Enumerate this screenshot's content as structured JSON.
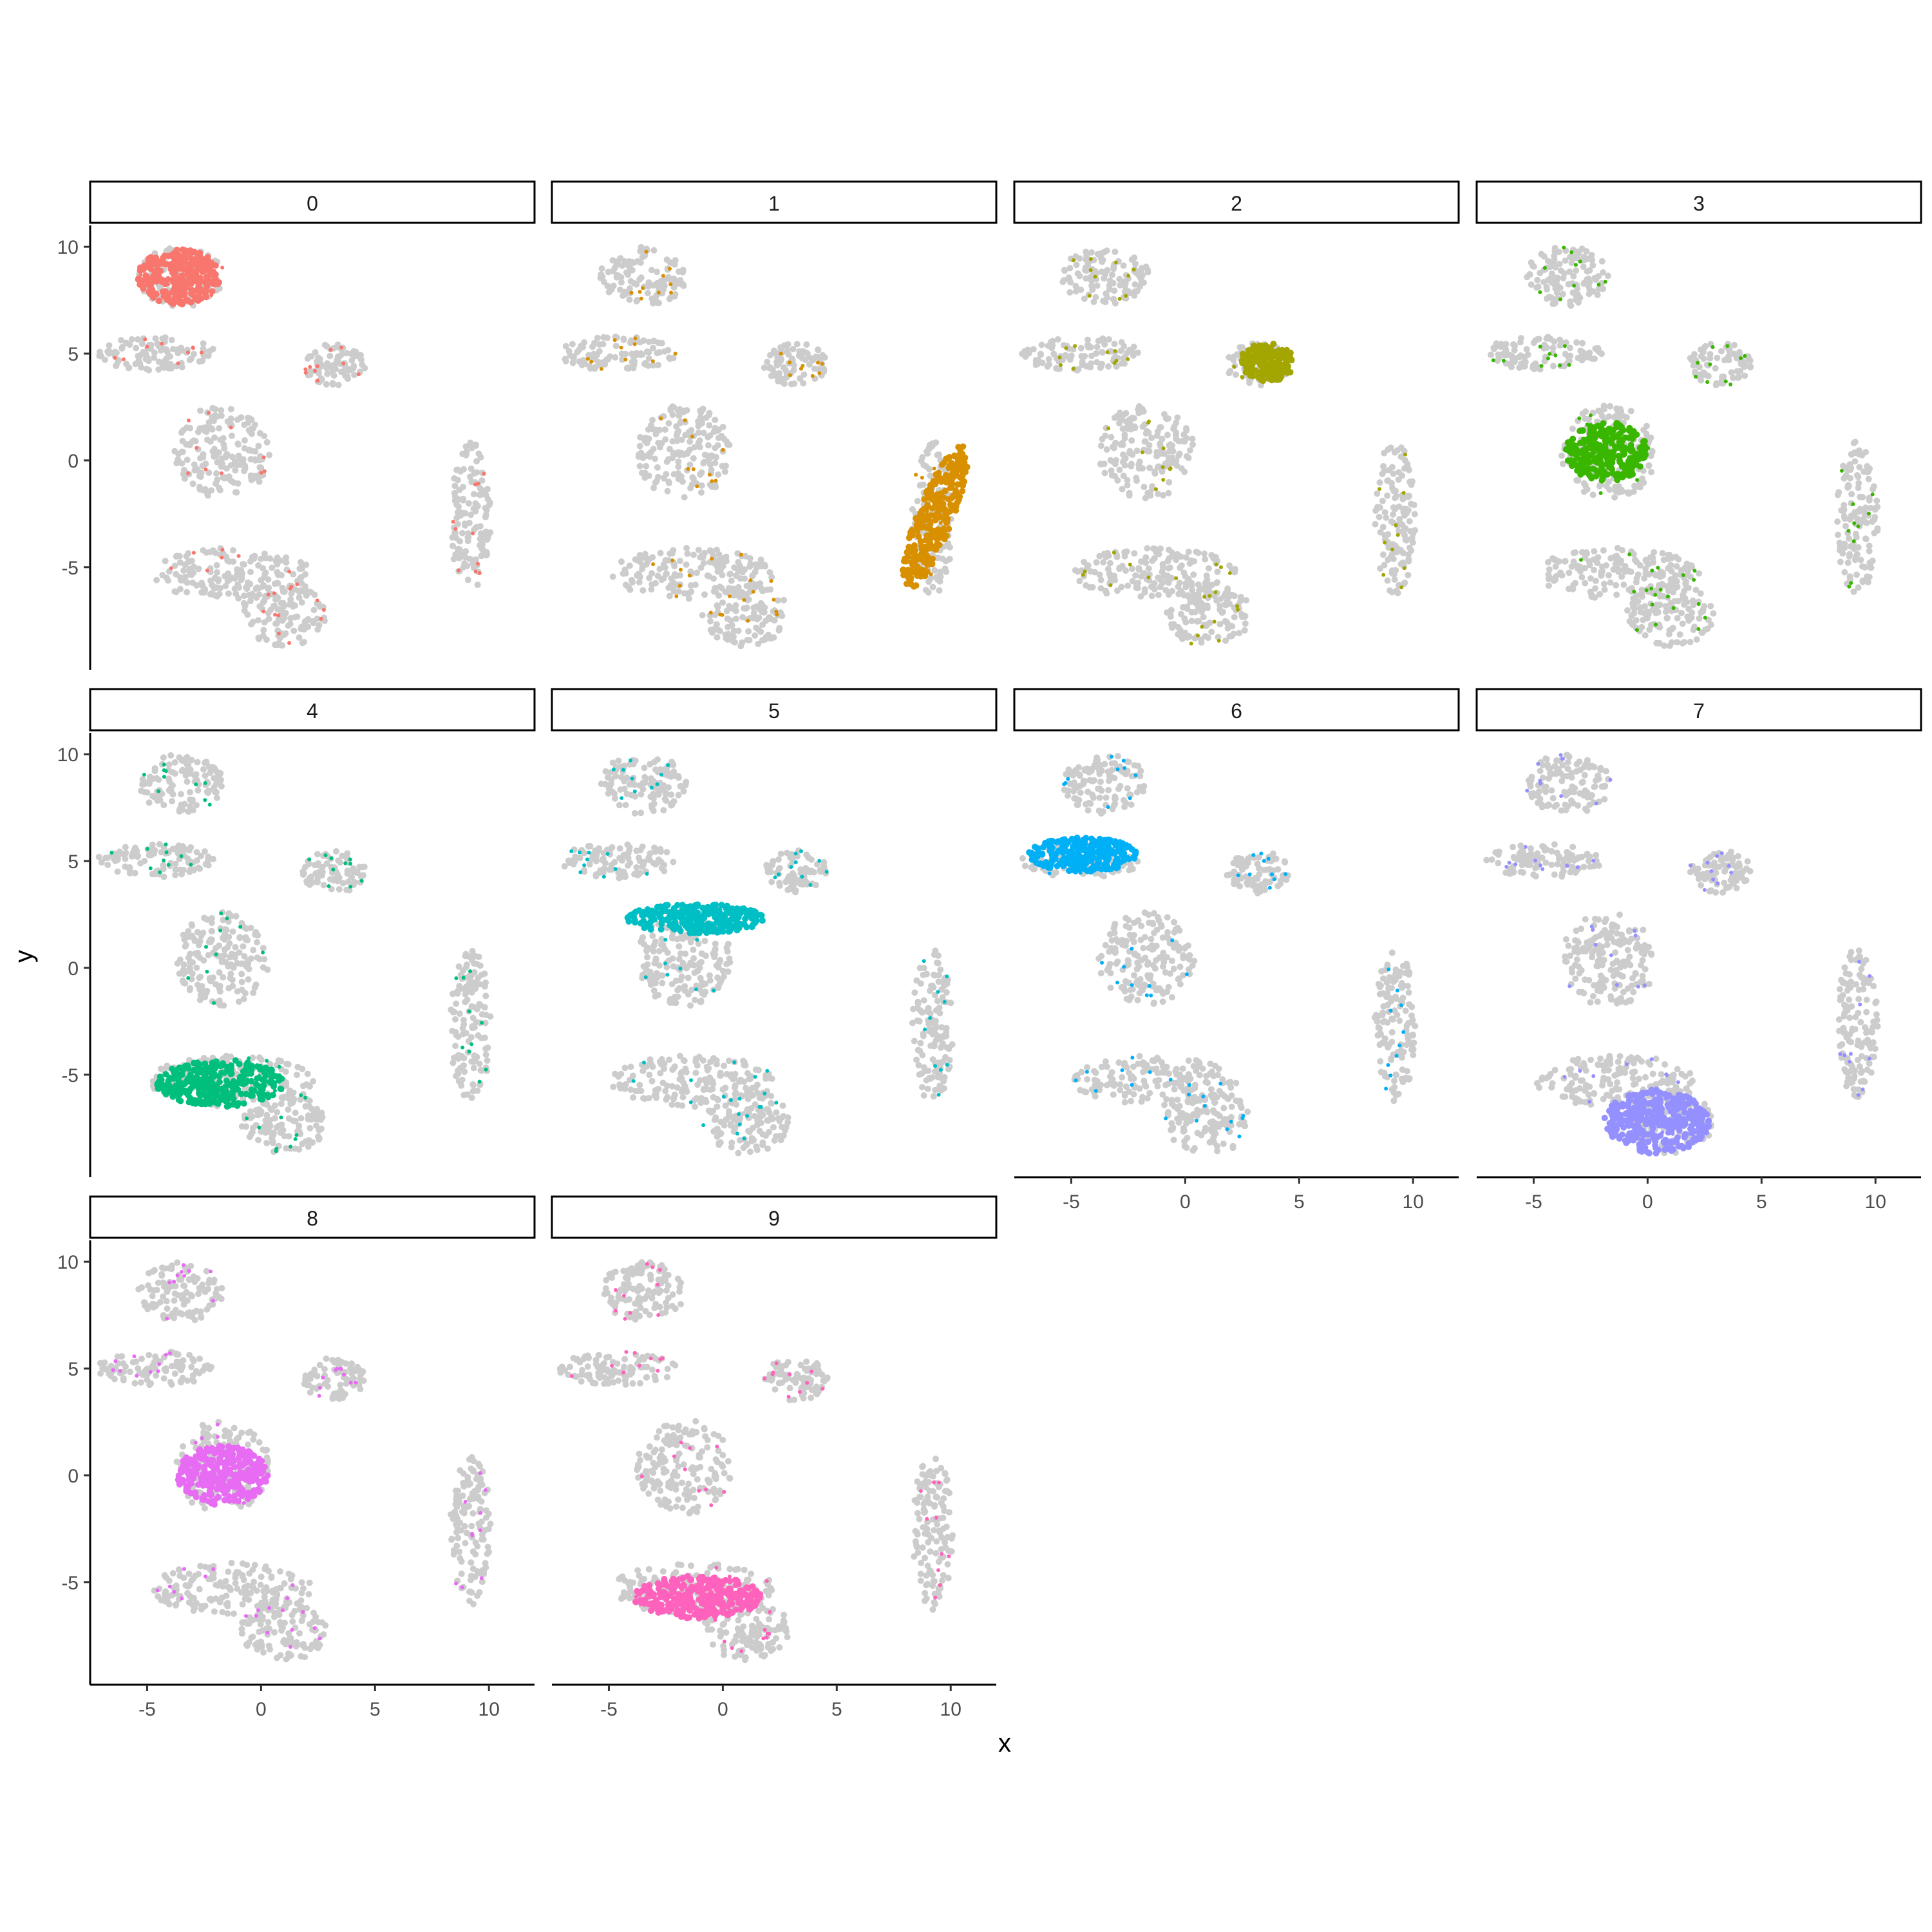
{
  "chart_data": {
    "type": "scatter",
    "layout": "faceted 4x3 small multiples, one panel per cluster",
    "xlabel": "x",
    "ylabel": "y",
    "xlim": [
      -7.5,
      12
    ],
    "ylim": [
      -9.8,
      11
    ],
    "x_ticks": [
      -5,
      0,
      5,
      10
    ],
    "x_tick_labels": [
      "-5",
      "0",
      "5",
      "10"
    ],
    "y_ticks": [
      10,
      5,
      0,
      -5
    ],
    "y_tick_labels": [
      "10",
      "5",
      "0",
      "-5"
    ],
    "grid": false,
    "legend": "none",
    "background_point_color": "#cccccc",
    "background_clusters": [
      {
        "cx": -3.5,
        "cy": 8.6,
        "rx": 1.9,
        "ry": 1.4
      },
      {
        "cx": -4.6,
        "cy": 5.0,
        "rx": 2.6,
        "ry": 0.8
      },
      {
        "cx": -1.7,
        "cy": 0.4,
        "rx": 2.1,
        "ry": 2.2
      },
      {
        "cx": 3.2,
        "cy": 4.5,
        "rx": 1.4,
        "ry": 1.0
      },
      {
        "cx": 9.2,
        "cy": -2.7,
        "rx": 0.9,
        "ry": 3.6
      },
      {
        "cx": -1.3,
        "cy": -5.3,
        "rx": 3.6,
        "ry": 1.2
      },
      {
        "cx": 1.0,
        "cy": -7.2,
        "rx": 1.9,
        "ry": 1.5
      }
    ],
    "facets": [
      {
        "label": "0",
        "color": "#F8766D",
        "core": {
          "cx": -3.6,
          "cy": 8.6,
          "rx": 1.8,
          "ry": 1.3
        }
      },
      {
        "label": "1",
        "color": "#D89000",
        "core": {
          "cx": 9.3,
          "cy": -2.7,
          "rx": 0.8,
          "ry": 3.6,
          "rot": -20
        }
      },
      {
        "label": "2",
        "color": "#A3A500",
        "core": {
          "cx": 3.6,
          "cy": 4.6,
          "rx": 1.2,
          "ry": 0.9
        }
      },
      {
        "label": "3",
        "color": "#39B600",
        "core": {
          "cx": -1.8,
          "cy": 0.4,
          "rx": 1.8,
          "ry": 1.4
        }
      },
      {
        "label": "4",
        "color": "#00BF7D",
        "core": {
          "cx": -1.8,
          "cy": -5.4,
          "rx": 2.8,
          "ry": 1.1
        }
      },
      {
        "label": "5",
        "color": "#00BFC4",
        "core": {
          "cx": -1.2,
          "cy": 2.3,
          "rx": 3.0,
          "ry": 0.7
        }
      },
      {
        "label": "6",
        "color": "#00B0F6",
        "core": {
          "cx": -4.5,
          "cy": 5.3,
          "rx": 2.4,
          "ry": 0.8
        }
      },
      {
        "label": "7",
        "color": "#9590FF",
        "core": {
          "cx": 0.4,
          "cy": -7.2,
          "rx": 2.3,
          "ry": 1.5
        }
      },
      {
        "label": "8",
        "color": "#E76BF3",
        "core": {
          "cx": -1.7,
          "cy": 0.0,
          "rx": 2.0,
          "ry": 1.4
        }
      },
      {
        "label": "9",
        "color": "#FF62BC",
        "core": {
          "cx": -1.1,
          "cy": -5.7,
          "rx": 2.8,
          "ry": 1.0
        }
      }
    ]
  }
}
